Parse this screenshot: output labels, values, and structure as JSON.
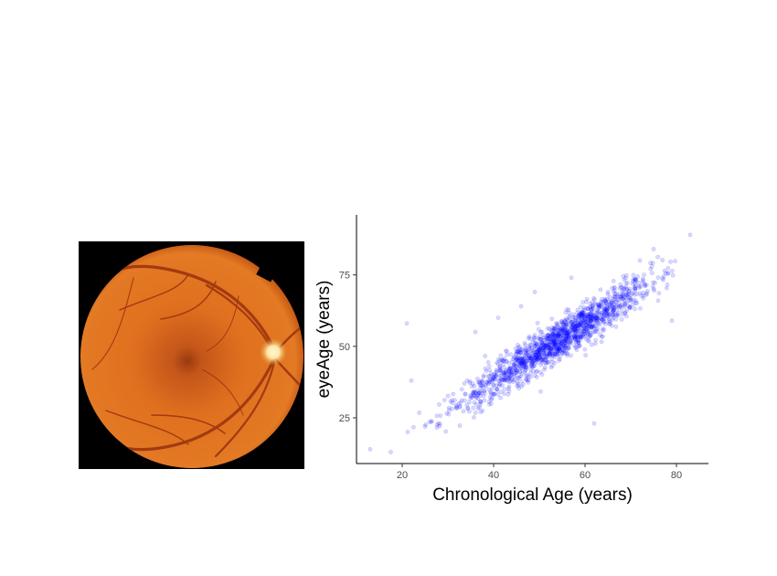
{
  "figure": {
    "left_panel": {
      "kind": "retinal fundus photograph",
      "colors": {
        "background": "#000000",
        "retina": "#e0701f",
        "retina_edge": "#b8480c",
        "vessel": "#a33a10",
        "optic_disc": "#fde8a8",
        "macula": "#7a300c"
      }
    }
  },
  "chart_data": {
    "type": "scatter",
    "title": "",
    "xlabel": "Chronological Age (years)",
    "ylabel": "eyeAge (years)",
    "xlim": [
      10,
      87
    ],
    "ylim": [
      9,
      96
    ],
    "xticks": [
      20,
      40,
      60,
      80
    ],
    "yticks": [
      25,
      50,
      75
    ],
    "grid": false,
    "legend": "none",
    "point_color": "#0000ff",
    "point_opacity": 0.15,
    "outliers": [
      {
        "x": 13,
        "y": 14
      },
      {
        "x": 17.5,
        "y": 13
      },
      {
        "x": 21,
        "y": 58
      },
      {
        "x": 22,
        "y": 38
      },
      {
        "x": 36,
        "y": 55
      },
      {
        "x": 46,
        "y": 64
      },
      {
        "x": 49,
        "y": 69
      },
      {
        "x": 62,
        "y": 23
      },
      {
        "x": 75,
        "y": 84
      },
      {
        "x": 83,
        "y": 89
      },
      {
        "x": 79,
        "y": 59
      },
      {
        "x": 54,
        "y": 47
      },
      {
        "x": 57,
        "y": 74
      },
      {
        "x": 41,
        "y": 60
      },
      {
        "x": 72,
        "y": 80
      },
      {
        "x": 76,
        "y": 66
      }
    ],
    "point_cloud": {
      "n": 1500,
      "x_mean": 54,
      "x_sd": 10.5,
      "x_range": [
        20,
        80
      ],
      "trend": {
        "intercept": -2,
        "slope": 1.0
      },
      "residual_sd": 3.5
    }
  }
}
